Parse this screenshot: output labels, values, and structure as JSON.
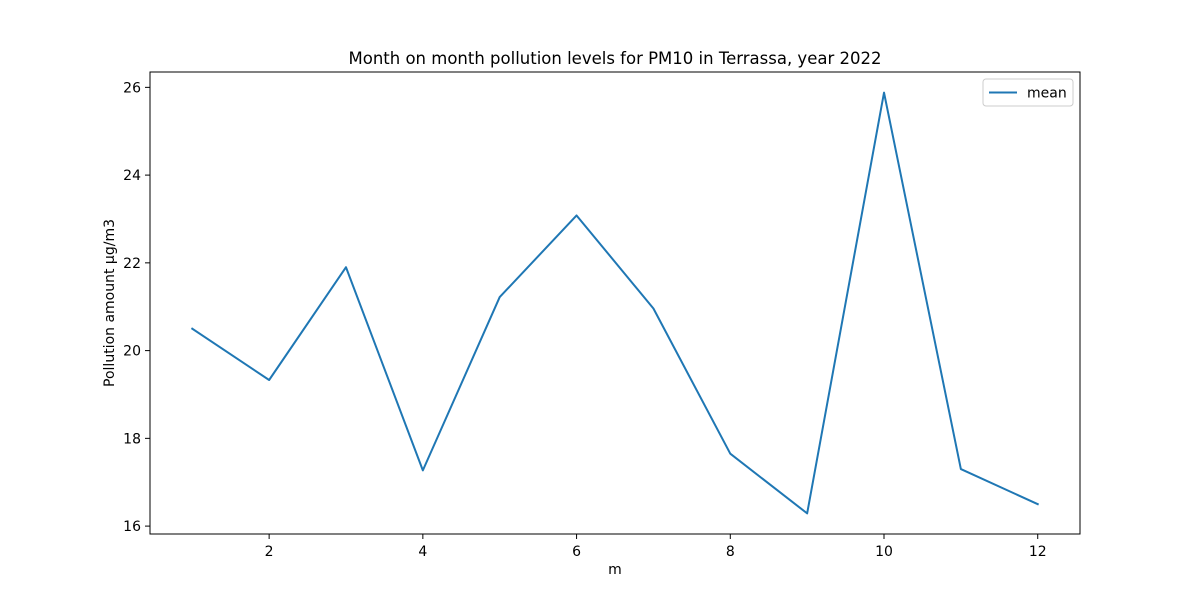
{
  "chart_data": {
    "type": "line",
    "title": "Month on month pollution levels for PM10 in Terrassa, year 2022",
    "xlabel": "m",
    "ylabel": "Pollution amount µg/m3",
    "x": [
      1,
      2,
      3,
      4,
      5,
      6,
      7,
      8,
      9,
      10,
      11,
      12
    ],
    "series": [
      {
        "name": "mean",
        "color": "#1f77b4",
        "values": [
          20.5,
          19.33,
          21.9,
          17.27,
          21.22,
          23.08,
          20.96,
          17.65,
          16.29,
          25.88,
          17.3,
          16.5
        ]
      }
    ],
    "xlim": [
      0.45,
      12.55
    ],
    "ylim": [
      15.82,
      26.35
    ],
    "xticks": [
      2,
      4,
      6,
      8,
      10,
      12
    ],
    "xtick_labels": [
      "2",
      "4",
      "6",
      "8",
      "10",
      "12"
    ],
    "yticks": [
      16,
      18,
      20,
      22,
      24,
      26
    ],
    "ytick_labels": [
      "16",
      "18",
      "20",
      "22",
      "24",
      "26"
    ],
    "grid": false,
    "legend": {
      "position": "top-right",
      "entries": [
        "mean"
      ]
    }
  }
}
